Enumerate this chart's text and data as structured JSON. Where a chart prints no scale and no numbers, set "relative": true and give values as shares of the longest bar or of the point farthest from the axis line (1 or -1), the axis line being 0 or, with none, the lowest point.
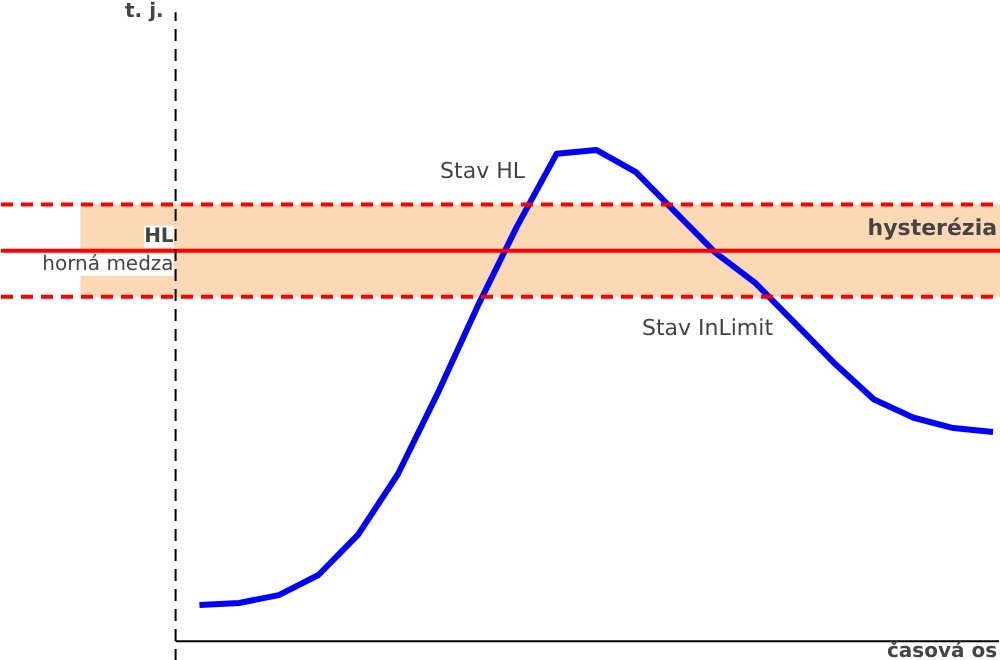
{
  "chart_data": {
    "type": "line",
    "relative": true,
    "xlabel": "časová os",
    "categories": [
      null,
      null,
      null,
      null,
      null,
      null,
      null,
      null,
      null,
      null,
      null,
      null,
      null,
      null,
      null,
      null,
      null,
      null,
      null,
      null,
      null
    ],
    "series": [
      {
        "color": "#0000ff",
        "values": [
          0.074,
          0.078,
          0.094,
          0.135,
          0.217,
          0.34,
          0.504,
          0.68,
          0.844,
          0.992,
          1.0,
          0.955,
          0.873,
          0.791,
          0.73,
          0.648,
          0.566,
          0.492,
          0.455,
          0.434,
          0.426
        ]
      }
    ],
    "ref_lines": [
      {
        "axis": "y",
        "value": 0.795,
        "label": "HL\nhorná medza",
        "color": "#ff0000",
        "line_style": "solid"
      },
      {
        "axis": "y",
        "value": 0.889,
        "color": "#ff0000",
        "line_style": "dashed"
      },
      {
        "axis": "y",
        "value": 0.701,
        "color": "#ff0000",
        "line_style": "dashed"
      }
    ],
    "bands": [
      {
        "axis": "y",
        "from": 0.701,
        "to": 0.889,
        "label": "hysterézia",
        "color": "#fbd9b5"
      }
    ],
    "annotations": [
      "Stav HL",
      "Stav InLimit",
      "t. j."
    ],
    "grid": false
  }
}
